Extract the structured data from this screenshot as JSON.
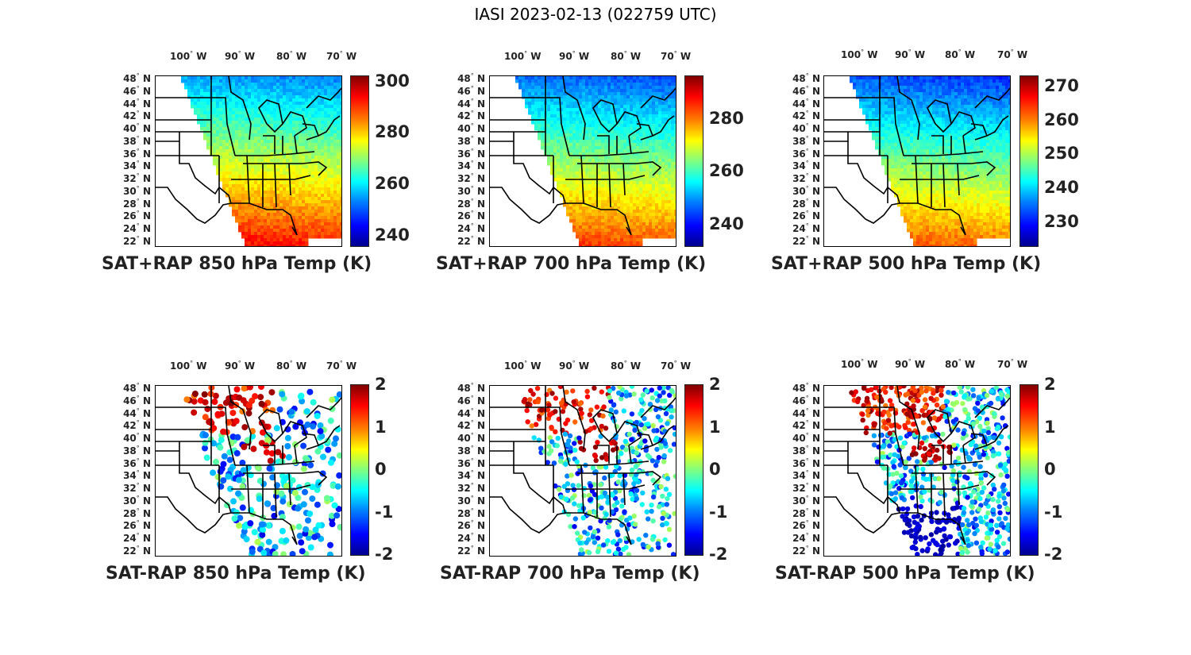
{
  "title": "IASI 2023-02-13 (022759 UTC)",
  "lon_labels": [
    {
      "value": "100",
      "dir": "W"
    },
    {
      "value": "90",
      "dir": "W"
    },
    {
      "value": "80",
      "dir": "W"
    },
    {
      "value": "70",
      "dir": "W"
    }
  ],
  "lat_labels": [
    {
      "value": "48",
      "dir": "N"
    },
    {
      "value": "46",
      "dir": "N"
    },
    {
      "value": "44",
      "dir": "N"
    },
    {
      "value": "42",
      "dir": "N"
    },
    {
      "value": "40",
      "dir": "N"
    },
    {
      "value": "38",
      "dir": "N"
    },
    {
      "value": "36",
      "dir": "N"
    },
    {
      "value": "34",
      "dir": "N"
    },
    {
      "value": "32",
      "dir": "N"
    },
    {
      "value": "30",
      "dir": "N"
    },
    {
      "value": "28",
      "dir": "N"
    },
    {
      "value": "26",
      "dir": "N"
    },
    {
      "value": "24",
      "dir": "N"
    },
    {
      "value": "22",
      "dir": "N"
    }
  ],
  "colormap": "jet",
  "panels": [
    {
      "title": "SAT+RAP 850 hPa Temp (K)",
      "kind": "temp",
      "colorbar": {
        "min": 236,
        "max": 302,
        "ticks": [
          "300",
          "280",
          "260",
          "240"
        ]
      }
    },
    {
      "title": "SAT+RAP 700 hPa Temp (K)",
      "kind": "temp",
      "colorbar": {
        "min": 232,
        "max": 296,
        "ticks": [
          "280",
          "260",
          "240"
        ]
      }
    },
    {
      "title": "SAT+RAP 500 hPa Temp (K)",
      "kind": "temp",
      "colorbar": {
        "min": 223,
        "max": 273,
        "ticks": [
          "270",
          "260",
          "250",
          "240",
          "230"
        ]
      }
    },
    {
      "title": "SAT-RAP 850 hPa Temp (K)",
      "kind": "diff",
      "colorbar": {
        "min": -2,
        "max": 2,
        "ticks": [
          "2",
          "1",
          "0",
          "-1",
          "-2"
        ]
      }
    },
    {
      "title": "SAT-RAP 700 hPa Temp (K)",
      "kind": "diff",
      "colorbar": {
        "min": -2,
        "max": 2,
        "ticks": [
          "2",
          "1",
          "0",
          "-1",
          "-2"
        ]
      }
    },
    {
      "title": "SAT-RAP 500 hPa Temp (K)",
      "kind": "diff",
      "colorbar": {
        "min": -2,
        "max": 2,
        "ticks": [
          "2",
          "1",
          "0",
          "-1",
          "-2"
        ]
      }
    }
  ]
}
